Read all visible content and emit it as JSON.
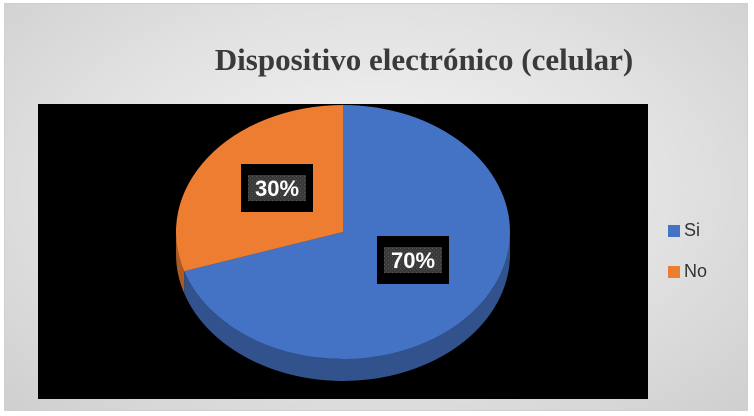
{
  "chart_data": {
    "type": "pie",
    "title": "Dispositivo electrónico (celular)",
    "categories": [
      "Si",
      "No"
    ],
    "values": [
      70,
      30
    ],
    "data_labels": [
      "70%",
      "30%"
    ],
    "colors": [
      "#4472c4",
      "#ed7d31"
    ],
    "legend_position": "right"
  }
}
